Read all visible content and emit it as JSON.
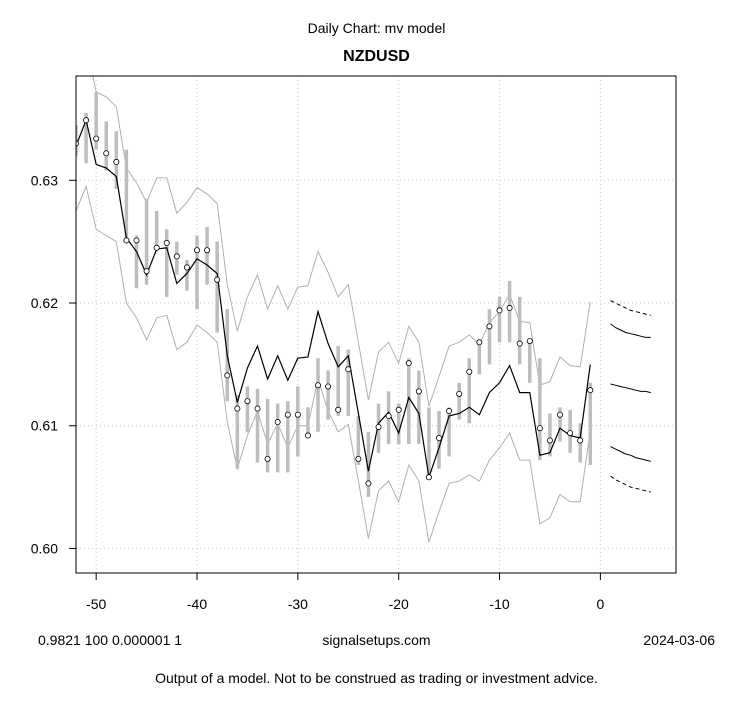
{
  "header": {
    "supertitle": "Daily Chart: mv model",
    "title": "NZDUSD"
  },
  "footer": {
    "params": "0.9821 100 0.000001 1",
    "site": "signalsetups.com",
    "date": "2024-03-06",
    "disclaimer": "Output of a model.  Not to be construed as trading or investment advice."
  },
  "colors": {
    "bars": "#bdbdbd",
    "bands": "#b0b0b0",
    "model": "#000000",
    "grid": "#c8c8c8"
  },
  "chart_data": {
    "type": "line",
    "title": "NZDUSD",
    "xlim": [
      -52,
      7.5
    ],
    "ylim": [
      0.598,
      0.6385
    ],
    "xticks": [
      -50,
      -40,
      -30,
      -20,
      -10,
      0
    ],
    "yticks": [
      0.6,
      0.61,
      0.62,
      0.63
    ],
    "xtick_labels": [
      "-50",
      "-40",
      "-30",
      "-20",
      "-10",
      "0"
    ],
    "ytick_labels": [
      "0.60",
      "0.61",
      "0.62",
      "0.63"
    ],
    "grid": true,
    "x": [
      -52,
      -51,
      -50,
      -49,
      -48,
      -47,
      -46,
      -45,
      -44,
      -43,
      -42,
      -41,
      -40,
      -39,
      -38,
      -37,
      -36,
      -35,
      -34,
      -33,
      -32,
      -31,
      -30,
      -29,
      -28,
      -27,
      -26,
      -25,
      -24,
      -23,
      -22,
      -21,
      -20,
      -19,
      -18,
      -17,
      -16,
      -15,
      -14,
      -13,
      -12,
      -11,
      -10,
      -9,
      -8,
      -7,
      -6,
      -5,
      -4,
      -3,
      -2,
      -1
    ],
    "close": [
      0.633,
      0.6349,
      0.6334,
      0.6322,
      0.6315,
      0.6251,
      0.6251,
      0.6226,
      0.6245,
      0.6249,
      0.6238,
      0.6229,
      0.6243,
      0.6243,
      0.6219,
      0.6141,
      0.6114,
      0.612,
      0.6114,
      0.6073,
      0.6103,
      0.6109,
      0.6109,
      0.6092,
      0.6133,
      0.6132,
      0.6113,
      0.6146,
      0.6073,
      0.6053,
      0.6099,
      0.6108,
      0.6113,
      0.6151,
      0.6128,
      0.6058,
      0.609,
      0.6112,
      0.6126,
      0.6144,
      0.6168,
      0.6181,
      0.6194,
      0.6196,
      0.6167,
      0.6169,
      0.6098,
      0.6088,
      0.6109,
      0.6094,
      0.6088,
      0.6129
    ],
    "high": [
      0.6345,
      0.6355,
      0.6372,
      0.6348,
      0.634,
      0.6325,
      0.6255,
      0.6285,
      0.6275,
      0.626,
      0.625,
      0.6235,
      0.6255,
      0.6262,
      0.625,
      0.6195,
      0.6125,
      0.6132,
      0.613,
      0.6122,
      0.6118,
      0.612,
      0.6132,
      0.6115,
      0.6155,
      0.6145,
      0.6165,
      0.6162,
      0.6108,
      0.6095,
      0.6118,
      0.6128,
      0.6118,
      0.6155,
      0.6145,
      0.6115,
      0.6112,
      0.6115,
      0.6135,
      0.6155,
      0.6168,
      0.6195,
      0.6205,
      0.6218,
      0.6205,
      0.617,
      0.6155,
      0.611,
      0.6115,
      0.6113,
      0.6102,
      0.6135
    ],
    "low": [
      0.632,
      0.6314,
      0.6325,
      0.6308,
      0.6293,
      0.625,
      0.6212,
      0.6215,
      0.6242,
      0.6205,
      0.6223,
      0.621,
      0.6195,
      0.6215,
      0.6176,
      0.612,
      0.6065,
      0.6095,
      0.607,
      0.6062,
      0.6062,
      0.6062,
      0.6075,
      0.6092,
      0.6095,
      0.6105,
      0.6108,
      0.6108,
      0.6068,
      0.6042,
      0.6078,
      0.6085,
      0.6085,
      0.6085,
      0.6085,
      0.6058,
      0.6065,
      0.6075,
      0.6105,
      0.6102,
      0.6142,
      0.615,
      0.6168,
      0.6168,
      0.615,
      0.6135,
      0.6072,
      0.6075,
      0.6087,
      0.6078,
      0.607,
      0.6068
    ],
    "series": [
      {
        "values": [
          0.6328,
          0.6349,
          0.6313,
          0.631,
          0.6303,
          0.6253,
          0.6242,
          0.6223,
          0.6244,
          0.6245,
          0.6216,
          0.6224,
          0.6236,
          0.6231,
          0.6224,
          0.6157,
          0.6119,
          0.6147,
          0.6165,
          0.6138,
          0.6157,
          0.6137,
          0.6155,
          0.6156,
          0.6193,
          0.6167,
          0.6148,
          0.6157,
          0.611,
          0.6063,
          0.6102,
          0.6111,
          0.6094,
          0.6123,
          0.611,
          0.6058,
          0.6082,
          0.6108,
          0.611,
          0.6115,
          0.6109,
          0.6127,
          0.6135,
          0.6149,
          0.6127,
          0.6127,
          0.6076,
          0.6078,
          0.6098,
          0.6092,
          0.609,
          0.615
        ]
      },
      {
        "values": [
          0.6395,
          0.641,
          0.6372,
          0.6368,
          0.636,
          0.631,
          0.6298,
          0.6282,
          0.6302,
          0.6302,
          0.6273,
          0.6282,
          0.6294,
          0.6289,
          0.6281,
          0.6215,
          0.6177,
          0.6205,
          0.6223,
          0.6195,
          0.6214,
          0.6195,
          0.6213,
          0.6214,
          0.6242,
          0.6225,
          0.6205,
          0.6215,
          0.6168,
          0.6121,
          0.616,
          0.6168,
          0.6151,
          0.6181,
          0.6168,
          0.6116,
          0.614,
          0.6165,
          0.6168,
          0.6174,
          0.6166,
          0.6184,
          0.6193,
          0.6207,
          0.6185,
          0.6184,
          0.6133,
          0.6136,
          0.6156,
          0.6149,
          0.6148,
          0.6201
        ]
      },
      {
        "values": [
          0.6275,
          0.6295,
          0.626,
          0.6255,
          0.625,
          0.62,
          0.6188,
          0.617,
          0.6188,
          0.619,
          0.6162,
          0.6168,
          0.6182,
          0.6176,
          0.6168,
          0.6103,
          0.6065,
          0.6092,
          0.6112,
          0.6085,
          0.6102,
          0.6082,
          0.61,
          0.61,
          0.6138,
          0.6112,
          0.6095,
          0.6101,
          0.6055,
          0.6008,
          0.6047,
          0.6055,
          0.6038,
          0.6068,
          0.6055,
          0.6005,
          0.603,
          0.6053,
          0.6055,
          0.606,
          0.6055,
          0.6072,
          0.6082,
          0.6094,
          0.6072,
          0.6072,
          0.602,
          0.6025,
          0.6044,
          0.6038,
          0.6038,
          0.6096
        ]
      }
    ],
    "forecast": {
      "x": [
        1,
        1.5,
        2,
        2.5,
        3,
        3.5,
        4,
        4.5,
        5
      ],
      "series": [
        {
          "dashed": true,
          "values": [
            0.6202,
            0.62,
            0.6198,
            0.6196,
            0.6194,
            0.6193,
            0.6192,
            0.6191,
            0.619
          ]
        },
        {
          "dashed": false,
          "values": [
            0.6183,
            0.618,
            0.6178,
            0.6176,
            0.6175,
            0.6174,
            0.6173,
            0.6172,
            0.6172
          ]
        },
        {
          "dashed": false,
          "values": [
            0.6134,
            0.6133,
            0.6132,
            0.6131,
            0.613,
            0.6129,
            0.6128,
            0.6128,
            0.6127
          ]
        },
        {
          "dashed": false,
          "values": [
            0.6083,
            0.6081,
            0.6079,
            0.6077,
            0.6076,
            0.6074,
            0.6073,
            0.6072,
            0.6071
          ]
        },
        {
          "dashed": true,
          "values": [
            0.6059,
            0.6056,
            0.6054,
            0.6052,
            0.605,
            0.6049,
            0.6048,
            0.6047,
            0.6046
          ]
        }
      ]
    }
  }
}
